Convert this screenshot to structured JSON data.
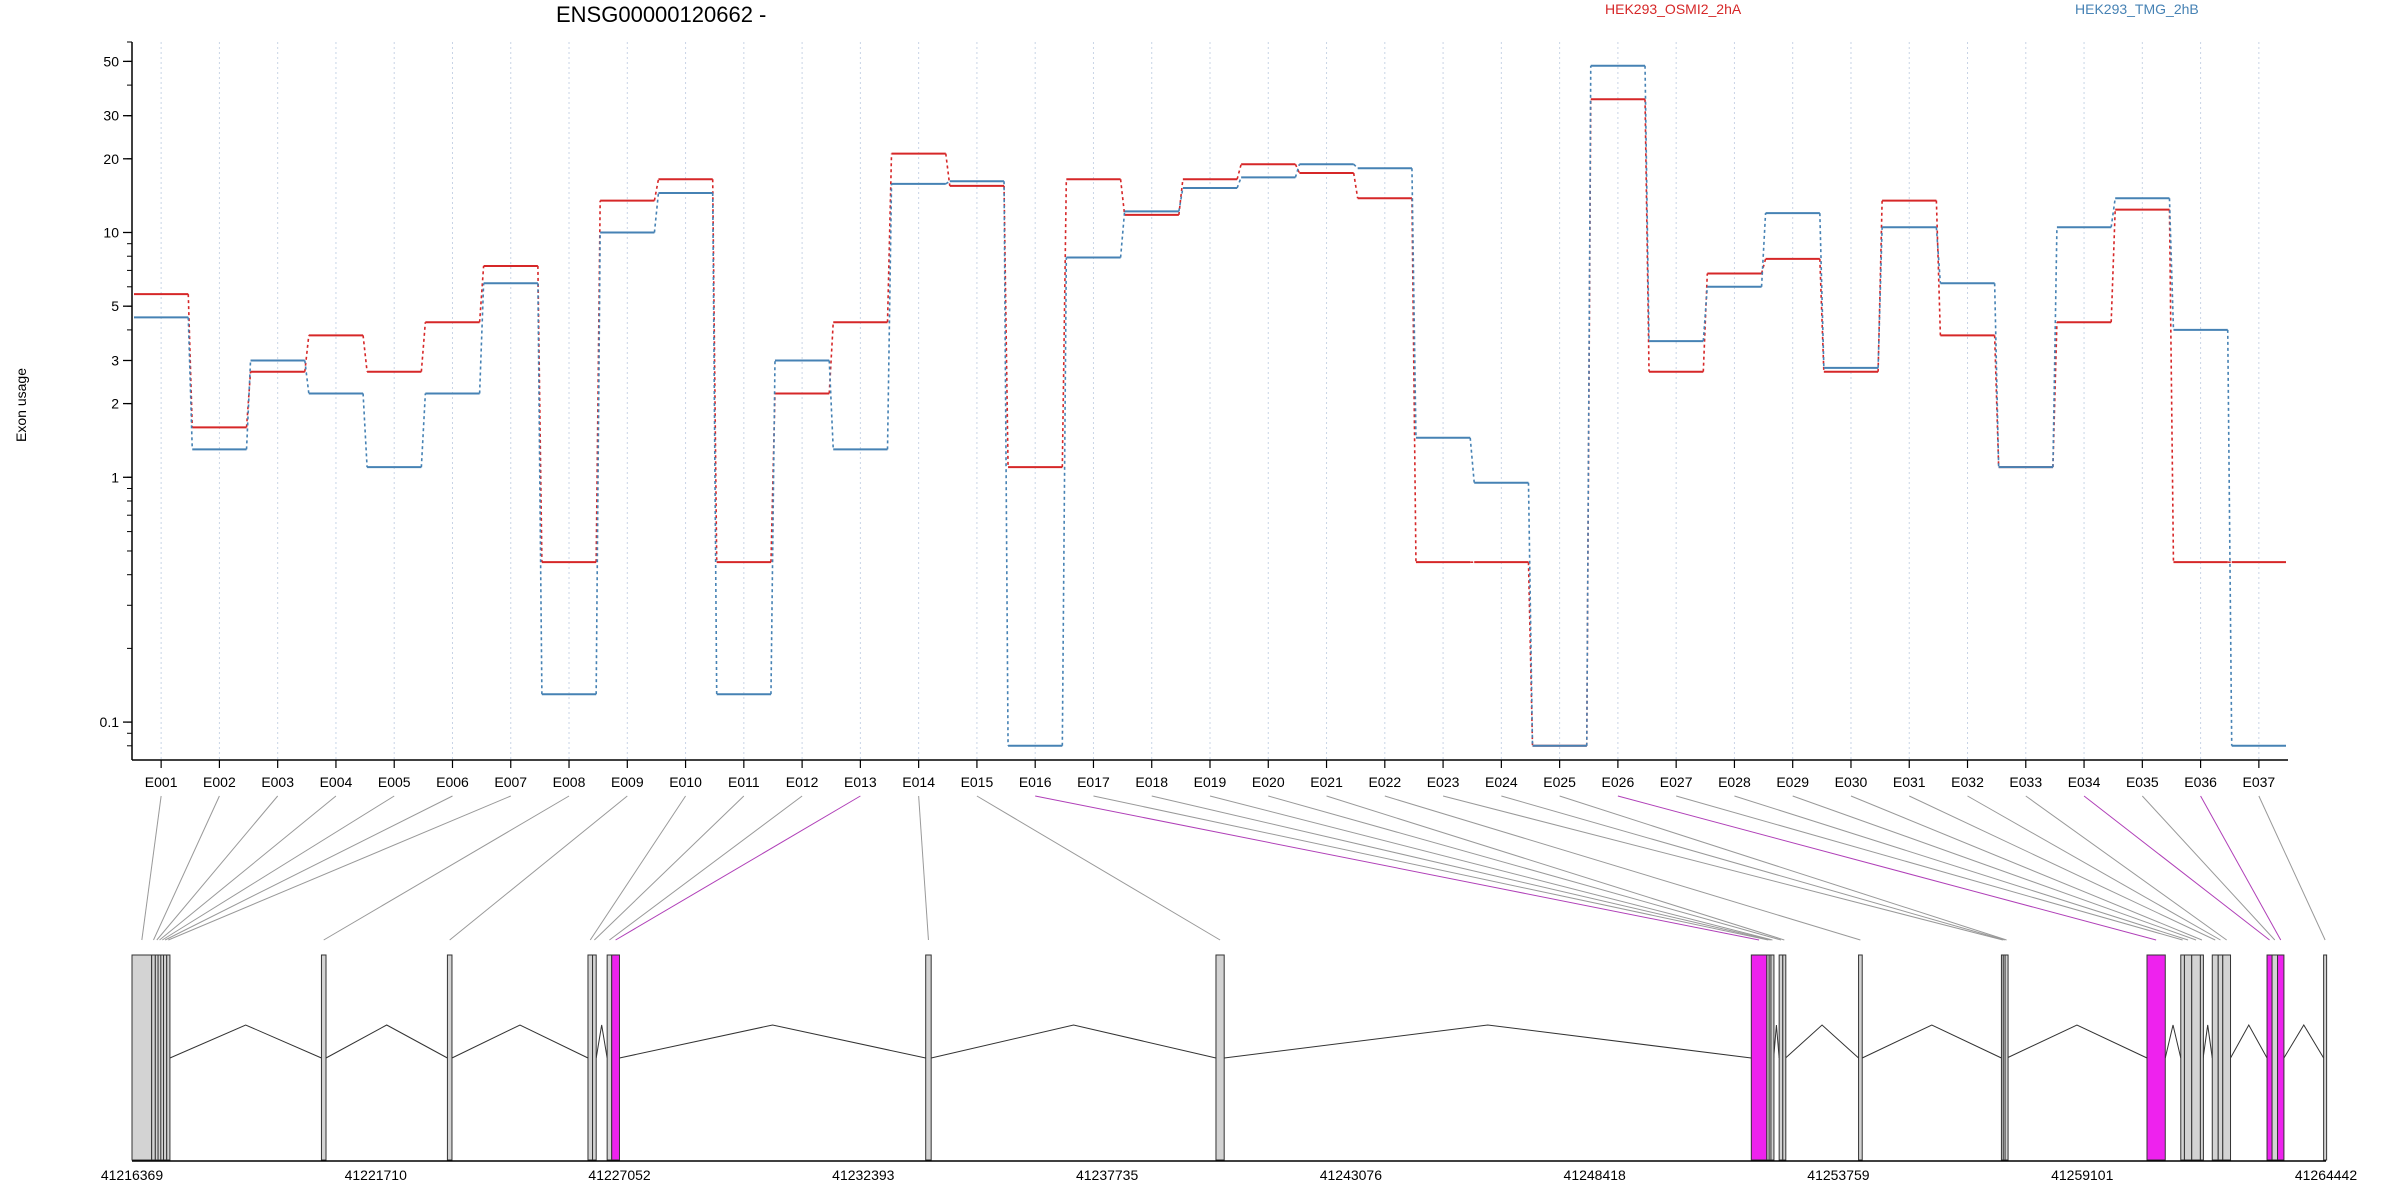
{
  "chart_data": {
    "type": "line",
    "title": "ENSG00000120662 -",
    "ylabel": "Exon usage",
    "y_scale": "log",
    "ylim": [
      0.07,
      60
    ],
    "y_ticks": [
      "0.1",
      "1",
      "2",
      "3",
      "5",
      "10",
      "20",
      "30",
      "50"
    ],
    "grid": "vertical dotted",
    "legend_placement": "top",
    "categories": [
      "E001",
      "E002",
      "E003",
      "E004",
      "E005",
      "E006",
      "E007",
      "E008",
      "E009",
      "E010",
      "E011",
      "E012",
      "E013",
      "E014",
      "E015",
      "E016",
      "E017",
      "E018",
      "E019",
      "E020",
      "E021",
      "E022",
      "E023",
      "E024",
      "E025",
      "E026",
      "E027",
      "E028",
      "E029",
      "E030",
      "E031",
      "E032",
      "E033",
      "E034",
      "E035",
      "E036",
      "E037"
    ],
    "series": [
      {
        "name": "HEK293_OSMI2_2hA",
        "color": "#d62728",
        "values": [
          5.6,
          1.6,
          2.7,
          3.8,
          2.7,
          4.3,
          7.3,
          0.45,
          13.5,
          16.5,
          0.45,
          2.2,
          4.3,
          21,
          15.5,
          1.1,
          16.5,
          11.8,
          16.5,
          19,
          17.5,
          13.8,
          0.45,
          0.45,
          0.08,
          35,
          2.7,
          6.8,
          7.8,
          2.7,
          13.5,
          3.8,
          1.1,
          4.3,
          12.4,
          0.45,
          0.45
        ]
      },
      {
        "name": "HEK293_TMG_2hB",
        "color": "#4682b4",
        "values": [
          4.5,
          1.3,
          3.0,
          2.2,
          1.1,
          2.2,
          6.2,
          0.13,
          10,
          14.5,
          0.13,
          3.0,
          1.3,
          15.8,
          16.2,
          0.08,
          7.9,
          12.2,
          15.2,
          16.8,
          19,
          18.3,
          1.45,
          0.95,
          0.08,
          48,
          3.6,
          6.0,
          12,
          2.8,
          10.5,
          6.2,
          1.1,
          10.5,
          13.8,
          4.0,
          0.08
        ]
      }
    ],
    "gene_model": {
      "coordinate_ticks": [
        "41216369",
        "41221710",
        "41227052",
        "41232393",
        "41237735",
        "41243076",
        "41248418",
        "41253759",
        "41259101",
        "41264442"
      ],
      "coord_range": [
        41216369,
        41264442
      ],
      "highlight_color": "#ee22ee",
      "exon_fill": "#d3d3d3",
      "exons": [
        {
          "id": "E001",
          "start": 41216369,
          "end": 41216800,
          "highlight": false
        },
        {
          "id": "E002",
          "start": 41216800,
          "end": 41216880,
          "highlight": false
        },
        {
          "id": "E003",
          "start": 41216880,
          "end": 41216940,
          "highlight": false
        },
        {
          "id": "E004",
          "start": 41216940,
          "end": 41217000,
          "highlight": false
        },
        {
          "id": "E005",
          "start": 41217000,
          "end": 41217060,
          "highlight": false
        },
        {
          "id": "E006",
          "start": 41217060,
          "end": 41217130,
          "highlight": false
        },
        {
          "id": "E007",
          "start": 41217130,
          "end": 41217200,
          "highlight": false
        },
        {
          "id": "E008",
          "start": 41220520,
          "end": 41220620,
          "highlight": false
        },
        {
          "id": "E009",
          "start": 41223280,
          "end": 41223380,
          "highlight": false
        },
        {
          "id": "E010",
          "start": 41226360,
          "end": 41226460,
          "highlight": false
        },
        {
          "id": "E011",
          "start": 41226460,
          "end": 41226540,
          "highlight": false
        },
        {
          "id": "E012",
          "start": 41226780,
          "end": 41226880,
          "highlight": false
        },
        {
          "id": "E013",
          "start": 41226880,
          "end": 41227050,
          "highlight": true
        },
        {
          "id": "E014",
          "start": 41233760,
          "end": 41233880,
          "highlight": false
        },
        {
          "id": "E015",
          "start": 41240120,
          "end": 41240300,
          "highlight": false
        },
        {
          "id": "E016",
          "start": 41251850,
          "end": 41252190,
          "highlight": true
        },
        {
          "id": "E017",
          "start": 41252190,
          "end": 41252240,
          "highlight": false
        },
        {
          "id": "E018",
          "start": 41252240,
          "end": 41252280,
          "highlight": false
        },
        {
          "id": "E019",
          "start": 41252280,
          "end": 41252340,
          "highlight": false
        },
        {
          "id": "E020",
          "start": 41252460,
          "end": 41252540,
          "highlight": false
        },
        {
          "id": "E021",
          "start": 41252540,
          "end": 41252600,
          "highlight": false
        },
        {
          "id": "E022",
          "start": 41254200,
          "end": 41254280,
          "highlight": false
        },
        {
          "id": "E023",
          "start": 41257330,
          "end": 41257370,
          "highlight": false
        },
        {
          "id": "E024",
          "start": 41257370,
          "end": 41257410,
          "highlight": false
        },
        {
          "id": "E025",
          "start": 41257410,
          "end": 41257450,
          "highlight": false
        },
        {
          "id": "E026",
          "start": 41260520,
          "end": 41260920,
          "highlight": true
        },
        {
          "id": "E027",
          "start": 41261260,
          "end": 41261340,
          "highlight": false
        },
        {
          "id": "E028",
          "start": 41261340,
          "end": 41261500,
          "highlight": false
        },
        {
          "id": "E029",
          "start": 41261500,
          "end": 41261690,
          "highlight": false
        },
        {
          "id": "E030",
          "start": 41261690,
          "end": 41261750,
          "highlight": false
        },
        {
          "id": "E031",
          "start": 41261950,
          "end": 41262080,
          "highlight": false
        },
        {
          "id": "E032",
          "start": 41262080,
          "end": 41262180,
          "highlight": false
        },
        {
          "id": "E033",
          "start": 41262180,
          "end": 41262350,
          "highlight": false
        },
        {
          "id": "E034",
          "start": 41263150,
          "end": 41263260,
          "highlight": true
        },
        {
          "id": "E035",
          "start": 41263260,
          "end": 41263380,
          "highlight": false
        },
        {
          "id": "E036",
          "start": 41263380,
          "end": 41263520,
          "highlight": true
        },
        {
          "id": "E037",
          "start": 41264390,
          "end": 41264442,
          "highlight": false
        }
      ]
    }
  }
}
